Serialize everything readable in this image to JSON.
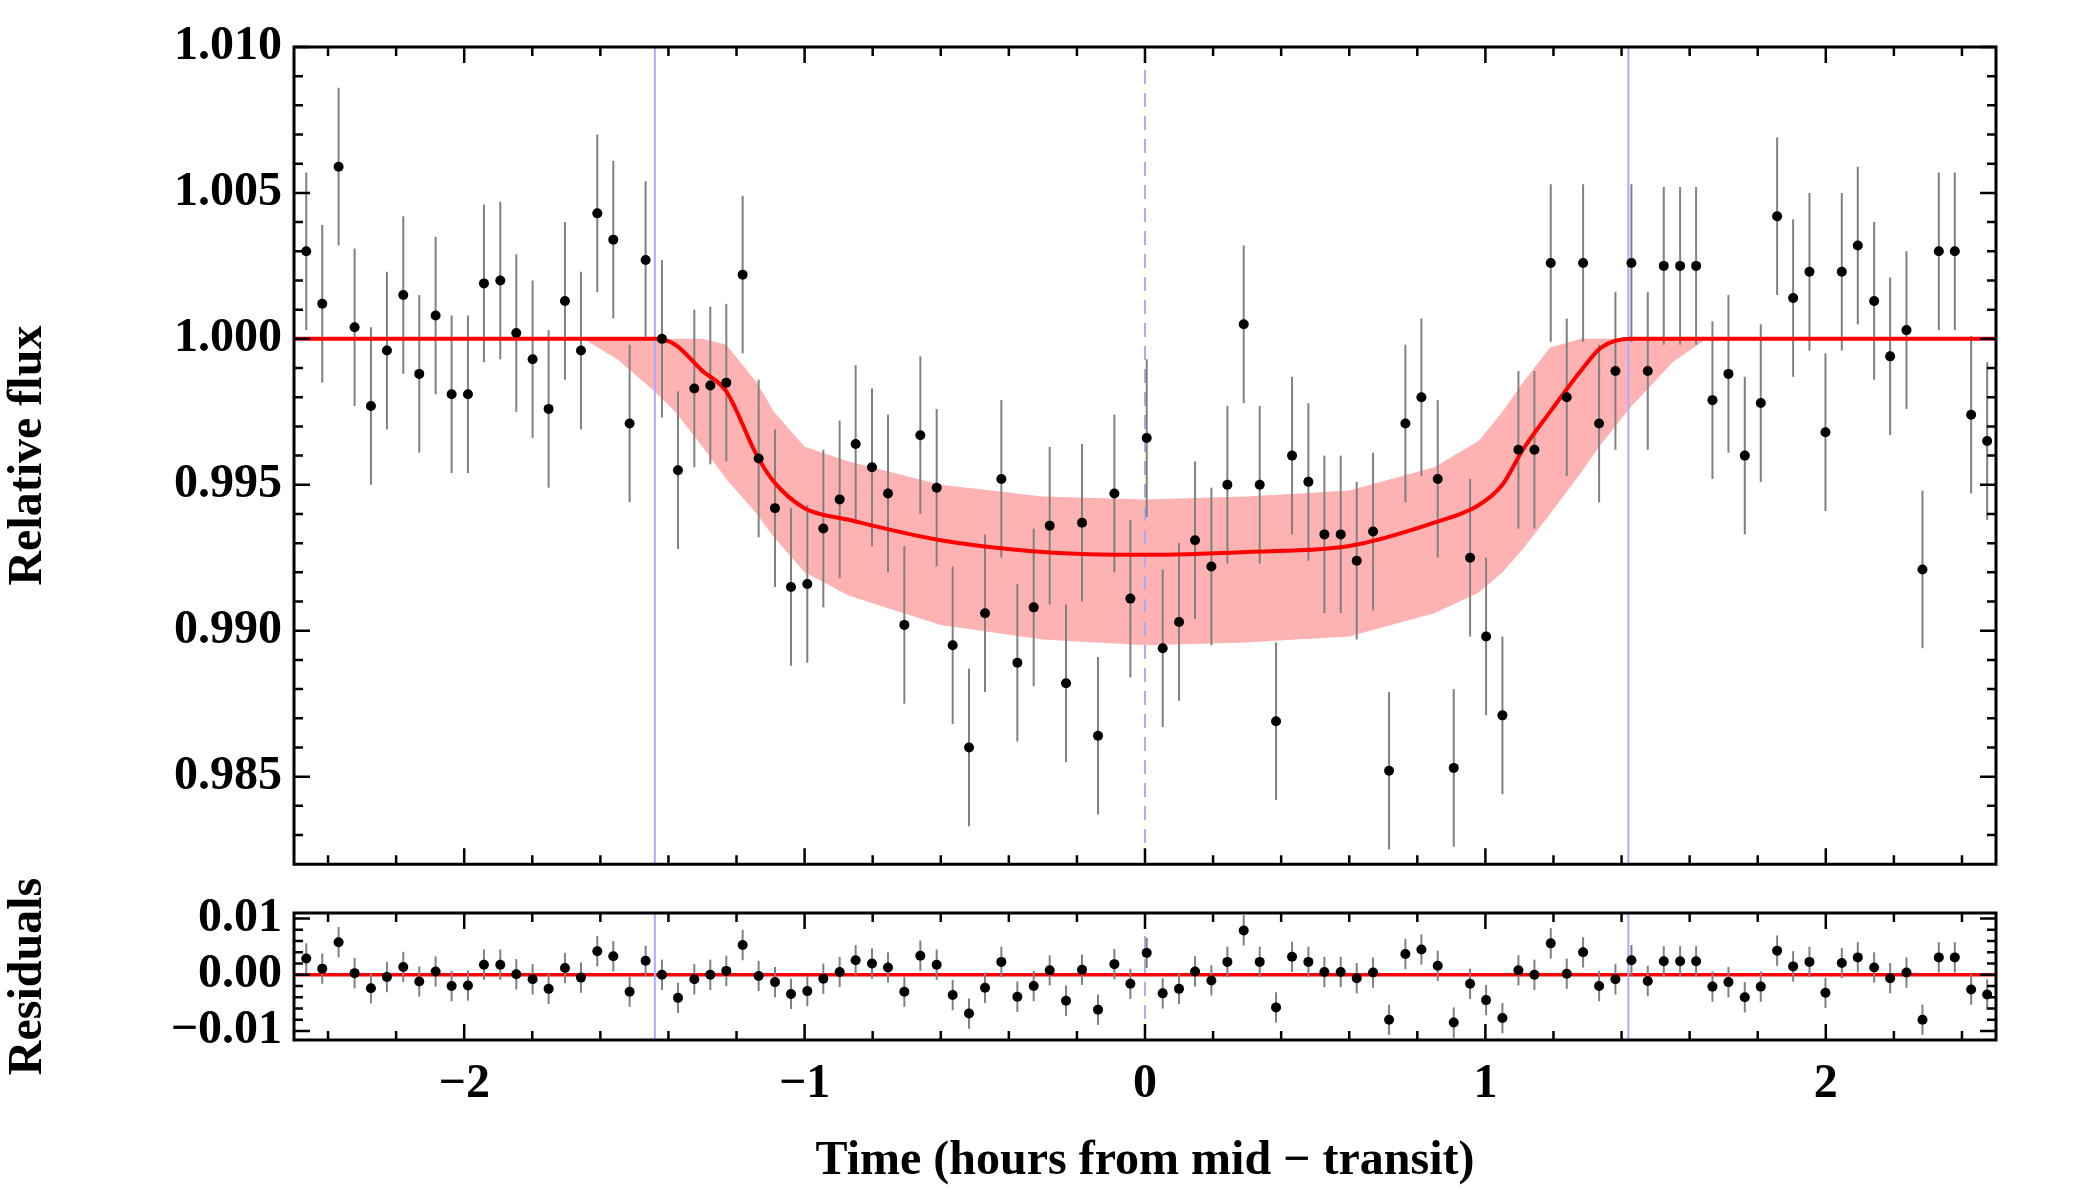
{
  "chart_data": [
    {
      "type": "scatter",
      "ylabel": "Relative flux",
      "xlim": [
        -2.5,
        2.5
      ],
      "ylim": [
        0.982,
        1.01
      ],
      "tick_labels": "y",
      "xticks": [
        {
          "value": -2.4,
          "label": null
        },
        {
          "value": -2.2,
          "label": null
        },
        {
          "value": -2,
          "label": null
        },
        {
          "value": -1.8,
          "label": null
        },
        {
          "value": -1.6,
          "label": null
        },
        {
          "value": -1.4,
          "label": null
        },
        {
          "value": -1.2,
          "label": null
        },
        {
          "value": -1,
          "label": null
        },
        {
          "value": -0.8,
          "label": null
        },
        {
          "value": -0.6,
          "label": null
        },
        {
          "value": -0.4,
          "label": null
        },
        {
          "value": -0.2,
          "label": null
        },
        {
          "value": 0,
          "label": null
        },
        {
          "value": 0.2,
          "label": null
        },
        {
          "value": 0.4,
          "label": null
        },
        {
          "value": 0.6,
          "label": null
        },
        {
          "value": 0.8,
          "label": null
        },
        {
          "value": 1,
          "label": null
        },
        {
          "value": 1.2,
          "label": null
        },
        {
          "value": 1.4,
          "label": null
        },
        {
          "value": 1.6,
          "label": null
        },
        {
          "value": 1.8,
          "label": null
        },
        {
          "value": 2,
          "label": null
        },
        {
          "value": 2.2,
          "label": null
        },
        {
          "value": 2.4,
          "label": null
        }
      ],
      "yticks": [
        {
          "value": 0.983,
          "label": null
        },
        {
          "value": 0.984,
          "label": null
        },
        {
          "value": 0.985,
          "label": "0.985"
        },
        {
          "value": 0.986,
          "label": null
        },
        {
          "value": 0.987,
          "label": null
        },
        {
          "value": 0.988,
          "label": null
        },
        {
          "value": 0.989,
          "label": null
        },
        {
          "value": 0.99,
          "label": "0.990"
        },
        {
          "value": 0.991,
          "label": null
        },
        {
          "value": 0.992,
          "label": null
        },
        {
          "value": 0.993,
          "label": null
        },
        {
          "value": 0.994,
          "label": null
        },
        {
          "value": 0.995,
          "label": "0.995"
        },
        {
          "value": 0.996,
          "label": null
        },
        {
          "value": 0.997,
          "label": null
        },
        {
          "value": 0.998,
          "label": null
        },
        {
          "value": 0.999,
          "label": null
        },
        {
          "value": 1,
          "label": "1.000"
        },
        {
          "value": 1.001,
          "label": null
        },
        {
          "value": 1.002,
          "label": null
        },
        {
          "value": 1.003,
          "label": null
        },
        {
          "value": 1.004,
          "label": null
        },
        {
          "value": 1.005,
          "label": "1.005"
        },
        {
          "value": 1.006,
          "label": null
        },
        {
          "value": 1.007,
          "label": null
        },
        {
          "value": 1.008,
          "label": null
        },
        {
          "value": 1.009,
          "label": null
        },
        {
          "value": 1.01,
          "label": "1.010"
        }
      ],
      "ref_lines": [
        {
          "axis": "x",
          "value": -1.44,
          "color": "#aaaaff"
        },
        {
          "axis": "x",
          "value": 1.42,
          "color": "#aaaaff"
        },
        {
          "axis": "x",
          "value": 0,
          "color": "#aaaaff",
          "line_style": "dashed"
        }
      ],
      "series": [
        {
          "marker": "circle",
          "color": "#000000",
          "x": [
            -2.464,
            -2.417,
            -2.369,
            -2.322,
            -2.274,
            -2.227,
            -2.179,
            -2.132,
            -2.084,
            -2.037,
            -1.989,
            -1.942,
            -1.894,
            -1.847,
            -1.799,
            -1.752,
            -1.704,
            -1.657,
            -1.609,
            -1.562,
            -1.514,
            -1.467,
            -1.419,
            -1.372,
            -1.324,
            -1.277,
            -1.23,
            -1.182,
            -1.135,
            -1.087,
            -1.04,
            -0.992,
            -0.945,
            -0.897,
            -0.85,
            -0.802,
            -0.755,
            -0.707,
            -0.66,
            -0.612,
            -0.565,
            -0.517,
            -0.47,
            -0.422,
            -0.375,
            -0.327,
            -0.28,
            -0.232,
            -0.185,
            -0.138,
            -0.09,
            -0.043,
            0.005,
            0.052,
            0.1,
            0.147,
            0.195,
            0.242,
            0.29,
            0.337,
            0.385,
            0.432,
            0.48,
            0.527,
            0.575,
            0.622,
            0.67,
            0.717,
            0.765,
            0.812,
            0.86,
            0.907,
            0.955,
            1.002,
            1.05,
            1.097,
            1.144,
            1.192,
            1.239,
            1.287,
            1.334,
            1.382,
            1.429,
            1.477,
            1.524,
            1.572,
            1.619,
            1.667,
            1.714,
            1.762,
            1.809,
            1.857,
            1.904,
            1.952,
            1.999,
            2.047,
            2.094,
            2.142,
            2.189,
            2.237,
            2.284,
            2.332,
            2.379,
            2.427,
            2.474
          ],
          "values": [
            1.003,
            1.0012,
            1.0059,
            1.0004,
            0.9977,
            0.9996,
            1.0015,
            0.9988,
            1.0008,
            0.9981,
            0.9981,
            1.0019,
            1.002,
            1.0002,
            0.9993,
            0.9976,
            1.0013,
            0.9996,
            1.0043,
            1.0034,
            0.9971,
            1.0027,
            1.0,
            0.9955,
            0.9983,
            0.9984,
            0.9985,
            1.0022,
            0.9959,
            0.9942,
            0.9915,
            0.9916,
            0.9935,
            0.9945,
            0.9964,
            0.9956,
            0.9947,
            0.9902,
            0.9967,
            0.9949,
            0.9895,
            0.986,
            0.9906,
            0.9952,
            0.9889,
            0.9908,
            0.9936,
            0.9882,
            0.9937,
            0.9864,
            0.9947,
            0.9911,
            0.9966,
            0.9894,
            0.9903,
            0.9931,
            0.9922,
            0.995,
            1.0005,
            0.995,
            0.9869,
            0.996,
            0.9951,
            0.9933,
            0.9933,
            0.9924,
            0.9934,
            0.9852,
            0.9971,
            0.998,
            0.9952,
            0.9853,
            0.9925,
            0.9898,
            0.9871,
            0.9962,
            0.9962,
            1.0026,
            0.998,
            1.0026,
            0.9971,
            0.9989,
            1.0026,
            0.9989,
            1.0025,
            1.0025,
            1.0025,
            0.9979,
            0.9988,
            0.996,
            0.9978,
            1.0042,
            1.0014,
            1.0023,
            0.9968,
            1.0023,
            1.0032,
            1.0013,
            0.9994,
            1.0003,
            0.9921,
            1.003,
            1.003,
            0.9974,
            0.9965
          ],
          "errors": [
            0.0027,
            0.0027,
            0.0027,
            0.0027,
            0.0027,
            0.0027,
            0.0027,
            0.0027,
            0.0027,
            0.0027,
            0.0027,
            0.0027,
            0.0027,
            0.0027,
            0.0027,
            0.0027,
            0.0027,
            0.0027,
            0.0027,
            0.0027,
            0.0027,
            0.0027,
            0.0027,
            0.0027,
            0.0027,
            0.0027,
            0.0027,
            0.0027,
            0.0027,
            0.0027,
            0.0027,
            0.0027,
            0.0027,
            0.0027,
            0.0027,
            0.0027,
            0.0027,
            0.0027,
            0.0027,
            0.0027,
            0.0027,
            0.0027,
            0.0027,
            0.0027,
            0.0027,
            0.0027,
            0.0027,
            0.0027,
            0.0027,
            0.0027,
            0.0027,
            0.0027,
            0.0027,
            0.0027,
            0.0027,
            0.0027,
            0.0027,
            0.0027,
            0.0027,
            0.0027,
            0.0027,
            0.0027,
            0.0027,
            0.0027,
            0.0027,
            0.0027,
            0.0027,
            0.0027,
            0.0027,
            0.0027,
            0.0027,
            0.0027,
            0.0027,
            0.0027,
            0.0027,
            0.0027,
            0.0027,
            0.0027,
            0.0027,
            0.0027,
            0.0027,
            0.0027,
            0.0027,
            0.0027,
            0.0027,
            0.0027,
            0.0027,
            0.0027,
            0.0027,
            0.0027,
            0.0027,
            0.0027,
            0.0027,
            0.0027,
            0.0027,
            0.0027,
            0.0027,
            0.0027,
            0.0027,
            0.0027,
            0.0027,
            0.0027,
            0.0027,
            0.0027,
            0.0027
          ]
        },
        {
          "type": "line",
          "color": "#ff0000",
          "x": [
            -2.5,
            -1.75,
            -1.65,
            -1.55,
            -1.44,
            -1.38,
            -1.3,
            -1.23,
            -1.14,
            -1.09,
            -1.0,
            -0.87,
            -0.6,
            -0.3,
            0,
            0.3,
            0.6,
            0.85,
            0.98,
            1.05,
            1.11,
            1.19,
            1.28,
            1.34,
            1.43,
            1.55,
            1.65,
            1.75,
            2.5
          ],
          "values": [
            1,
            1,
            1,
            1,
            1,
            0.9998,
            0.9989,
            0.9982,
            0.996,
            0.9951,
            0.9942,
            0.9938,
            0.9931,
            0.9927,
            0.9926,
            0.9927,
            0.9929,
            0.9937,
            0.9943,
            0.995,
            0.9962,
            0.9975,
            0.9989,
            0.9997,
            1,
            1,
            1,
            1,
            1
          ],
          "lower": [
            1,
            1,
            1,
            0.9993,
            0.9982,
            0.9975,
            0.9963,
            0.9952,
            0.994,
            0.9932,
            0.992,
            0.9912,
            0.9902,
            0.9897,
            0.9895,
            0.9896,
            0.9898,
            0.9906,
            0.9913,
            0.992,
            0.9928,
            0.994,
            0.9954,
            0.9964,
            0.9977,
            0.9992,
            1,
            1,
            1
          ],
          "upper": [
            1,
            1,
            1,
            1,
            1,
            1,
            1,
            0.9998,
            0.9985,
            0.9975,
            0.9963,
            0.9958,
            0.995,
            0.9946,
            0.9945,
            0.9946,
            0.9948,
            0.9956,
            0.9965,
            0.9975,
            0.9985,
            0.9997,
            1,
            1,
            1,
            1,
            1,
            1,
            1
          ]
        }
      ]
    },
    {
      "type": "scatter",
      "xlabel": "Time (hours from mid − transit)",
      "ylabel": "Residuals",
      "xlim": [
        -2.5,
        2.5
      ],
      "ylim": [
        -0.0116,
        0.011
      ],
      "xticks": [
        {
          "value": -2.4,
          "label": null
        },
        {
          "value": -2.2,
          "label": null
        },
        {
          "value": -2,
          "label": "−2"
        },
        {
          "value": -1.8,
          "label": null
        },
        {
          "value": -1.6,
          "label": null
        },
        {
          "value": -1.4,
          "label": null
        },
        {
          "value": -1.2,
          "label": null
        },
        {
          "value": -1,
          "label": "−1"
        },
        {
          "value": -0.8,
          "label": null
        },
        {
          "value": -0.6,
          "label": null
        },
        {
          "value": -0.4,
          "label": null
        },
        {
          "value": -0.2,
          "label": null
        },
        {
          "value": 0,
          "label": "0"
        },
        {
          "value": 0.2,
          "label": null
        },
        {
          "value": 0.4,
          "label": null
        },
        {
          "value": 0.6,
          "label": null
        },
        {
          "value": 0.8,
          "label": null
        },
        {
          "value": 1,
          "label": "1"
        },
        {
          "value": 1.2,
          "label": null
        },
        {
          "value": 1.4,
          "label": null
        },
        {
          "value": 1.6,
          "label": null
        },
        {
          "value": 1.8,
          "label": null
        },
        {
          "value": 2,
          "label": "2"
        },
        {
          "value": 2.2,
          "label": null
        },
        {
          "value": 2.4,
          "label": null
        }
      ],
      "yticks": [
        {
          "value": -0.01,
          "label": "−0.01"
        },
        {
          "value": -0.008,
          "label": null
        },
        {
          "value": -0.006,
          "label": null
        },
        {
          "value": -0.004,
          "label": null
        },
        {
          "value": -0.002,
          "label": null
        },
        {
          "value": 0,
          "label": "0.00"
        },
        {
          "value": 0.002,
          "label": null
        },
        {
          "value": 0.004,
          "label": null
        },
        {
          "value": 0.006,
          "label": null
        },
        {
          "value": 0.008,
          "label": null
        },
        {
          "value": 0.01,
          "label": "0.01"
        }
      ],
      "ref_lines": [
        {
          "axis": "y",
          "value": 0,
          "color": "#ff0000"
        },
        {
          "axis": "x",
          "value": -1.44,
          "color": "#aaaaff"
        },
        {
          "axis": "x",
          "value": 1.42,
          "color": "#aaaaff"
        },
        {
          "axis": "x",
          "value": 0,
          "color": "#aaaaff",
          "line_style": "dashed"
        }
      ],
      "series": [
        {
          "marker": "circle",
          "color": "#000000",
          "x": [
            -2.464,
            -2.417,
            -2.369,
            -2.322,
            -2.274,
            -2.227,
            -2.179,
            -2.132,
            -2.084,
            -2.037,
            -1.989,
            -1.942,
            -1.894,
            -1.847,
            -1.799,
            -1.752,
            -1.704,
            -1.657,
            -1.609,
            -1.562,
            -1.514,
            -1.467,
            -1.419,
            -1.372,
            -1.324,
            -1.277,
            -1.23,
            -1.182,
            -1.135,
            -1.087,
            -1.04,
            -0.992,
            -0.945,
            -0.897,
            -0.85,
            -0.802,
            -0.755,
            -0.707,
            -0.66,
            -0.612,
            -0.565,
            -0.517,
            -0.47,
            -0.422,
            -0.375,
            -0.327,
            -0.28,
            -0.232,
            -0.185,
            -0.138,
            -0.09,
            -0.043,
            0.005,
            0.052,
            0.1,
            0.147,
            0.195,
            0.242,
            0.29,
            0.337,
            0.385,
            0.432,
            0.48,
            0.527,
            0.575,
            0.622,
            0.67,
            0.717,
            0.765,
            0.812,
            0.86,
            0.907,
            0.955,
            1.002,
            1.05,
            1.097,
            1.144,
            1.192,
            1.239,
            1.287,
            1.334,
            1.382,
            1.429,
            1.477,
            1.524,
            1.572,
            1.619,
            1.667,
            1.714,
            1.762,
            1.809,
            1.857,
            1.904,
            1.952,
            1.999,
            2.047,
            2.094,
            2.142,
            2.189,
            2.237,
            2.284,
            2.332,
            2.379,
            2.427,
            2.474
          ],
          "values": [
            0.0029,
            0.0011,
            0.0058,
            0.0003,
            -0.0024,
            -0.0004,
            0.0014,
            -0.0012,
            0.0006,
            -0.002,
            -0.0019,
            0.0018,
            0.0018,
            0.0001,
            -0.0008,
            -0.0025,
            0.0012,
            -0.0005,
            0.0042,
            0.0033,
            -0.003,
            0.0025,
            0.0,
            -0.0041,
            -0.0008,
            0.0,
            0.0007,
            0.0053,
            -0.0002,
            -0.0013,
            -0.0034,
            -0.0029,
            -0.0007,
            0.0005,
            0.0026,
            0.002,
            0.0013,
            -0.003,
            0.0034,
            0.0018,
            -0.0036,
            -0.0069,
            -0.0023,
            0.0023,
            -0.0039,
            -0.002,
            0.0008,
            -0.0046,
            0.0009,
            -0.0062,
            0.0019,
            -0.0016,
            0.0039,
            -0.0033,
            -0.0025,
            0.0006,
            -0.001,
            0.0023,
            0.0079,
            0.0023,
            -0.0058,
            0.0032,
            0.0023,
            0.0005,
            0.0005,
            -0.0006,
            0.0004,
            -0.008,
            0.0037,
            0.0045,
            0.0016,
            -0.0085,
            -0.0016,
            -0.0045,
            -0.0077,
            0.0008,
            0.0,
            0.0056,
            0.0002,
            0.004,
            -0.002,
            -0.0008,
            0.0026,
            -0.0011,
            0.0024,
            0.0024,
            0.0024,
            -0.0021,
            -0.0013,
            -0.004,
            -0.0021,
            0.0043,
            0.0015,
            0.0023,
            -0.0032,
            0.0021,
            0.0031,
            0.0013,
            -0.0006,
            0.0004,
            -0.008,
            0.0031,
            0.0031,
            -0.0026,
            -0.0035
          ],
          "errors": [
            0.0027,
            0.0027,
            0.0027,
            0.0027,
            0.0027,
            0.0027,
            0.0027,
            0.0027,
            0.0027,
            0.0027,
            0.0027,
            0.0027,
            0.0027,
            0.0027,
            0.0027,
            0.0027,
            0.0027,
            0.0027,
            0.0027,
            0.0027,
            0.0027,
            0.0027,
            0.0027,
            0.0027,
            0.0027,
            0.0027,
            0.0027,
            0.0027,
            0.0027,
            0.0027,
            0.0027,
            0.0027,
            0.0027,
            0.0027,
            0.0027,
            0.0027,
            0.0027,
            0.0027,
            0.0027,
            0.0027,
            0.0027,
            0.0027,
            0.0027,
            0.0027,
            0.0027,
            0.0027,
            0.0027,
            0.0027,
            0.0027,
            0.0027,
            0.0027,
            0.0027,
            0.0027,
            0.0027,
            0.0027,
            0.0027,
            0.0027,
            0.0027,
            0.0027,
            0.0027,
            0.0027,
            0.0027,
            0.0027,
            0.0027,
            0.0027,
            0.0027,
            0.0027,
            0.0027,
            0.0027,
            0.0027,
            0.0027,
            0.0027,
            0.0027,
            0.0027,
            0.0027,
            0.0027,
            0.0027,
            0.0027,
            0.0027,
            0.0027,
            0.0027,
            0.0027,
            0.0027,
            0.0027,
            0.0027,
            0.0027,
            0.0027,
            0.0027,
            0.0027,
            0.0027,
            0.0027,
            0.0027,
            0.0027,
            0.0027,
            0.0027,
            0.0027,
            0.0027,
            0.0027,
            0.0027,
            0.0027,
            0.0027,
            0.0027,
            0.0027,
            0.0027,
            0.0027
          ]
        }
      ]
    }
  ]
}
